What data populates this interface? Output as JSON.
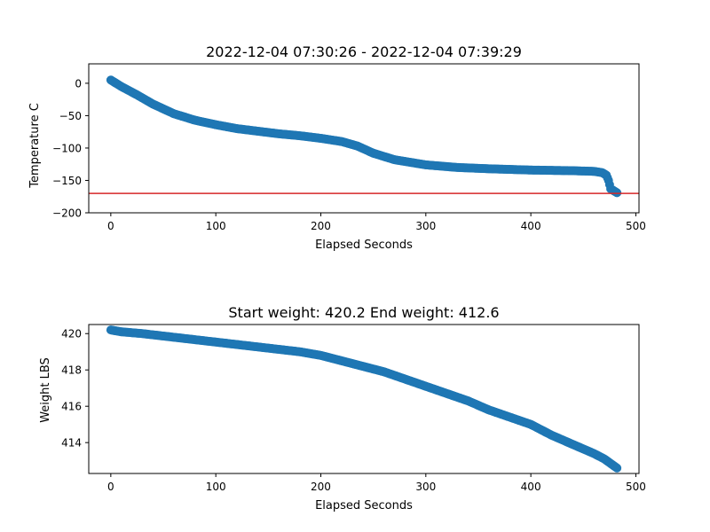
{
  "chart_data": [
    {
      "type": "scatter",
      "title": "2022-12-04 07:30:26 - 2022-12-04 07:39:29",
      "xlabel": "Elapsed Seconds",
      "ylabel": "Temperature C",
      "xlim": [
        -21,
        503
      ],
      "ylim": [
        -200,
        30
      ],
      "xticks": [
        0,
        100,
        200,
        300,
        400,
        500
      ],
      "yticks": [
        0,
        -50,
        -100,
        -150,
        -200
      ],
      "grid": false,
      "point_color": "#1f77b4",
      "reference_line": {
        "y": -170,
        "color": "#d62728"
      },
      "x": [
        0,
        10,
        25,
        40,
        60,
        80,
        100,
        120,
        140,
        160,
        180,
        200,
        220,
        235,
        250,
        270,
        300,
        330,
        360,
        400,
        440,
        460,
        468,
        472,
        474,
        476,
        478,
        480,
        482
      ],
      "y": [
        5,
        -5,
        -18,
        -32,
        -47,
        -57,
        -64,
        -70,
        -74,
        -78,
        -81,
        -85,
        -90,
        -97,
        -108,
        -118,
        -126,
        -130,
        -132,
        -134,
        -135,
        -136,
        -138,
        -142,
        -150,
        -163,
        -165,
        -167,
        -169
      ]
    },
    {
      "type": "scatter",
      "title": "Start weight: 420.2 End weight: 412.6",
      "xlabel": "Elapsed Seconds",
      "ylabel": "Weight LBS",
      "xlim": [
        -21,
        503
      ],
      "ylim": [
        412.3,
        420.5
      ],
      "xticks": [
        0,
        100,
        200,
        300,
        400,
        500
      ],
      "yticks": [
        414,
        416,
        418,
        420
      ],
      "grid": false,
      "point_color": "#1f77b4",
      "x": [
        0,
        10,
        30,
        60,
        90,
        120,
        150,
        180,
        200,
        220,
        240,
        260,
        280,
        300,
        320,
        340,
        360,
        380,
        400,
        420,
        440,
        460,
        470,
        482
      ],
      "y": [
        420.2,
        420.1,
        420.0,
        419.8,
        419.6,
        419.4,
        419.2,
        419.0,
        418.8,
        418.5,
        418.2,
        417.9,
        417.5,
        417.1,
        416.7,
        416.3,
        415.8,
        415.4,
        415.0,
        414.4,
        413.9,
        413.4,
        413.1,
        412.6
      ]
    }
  ]
}
